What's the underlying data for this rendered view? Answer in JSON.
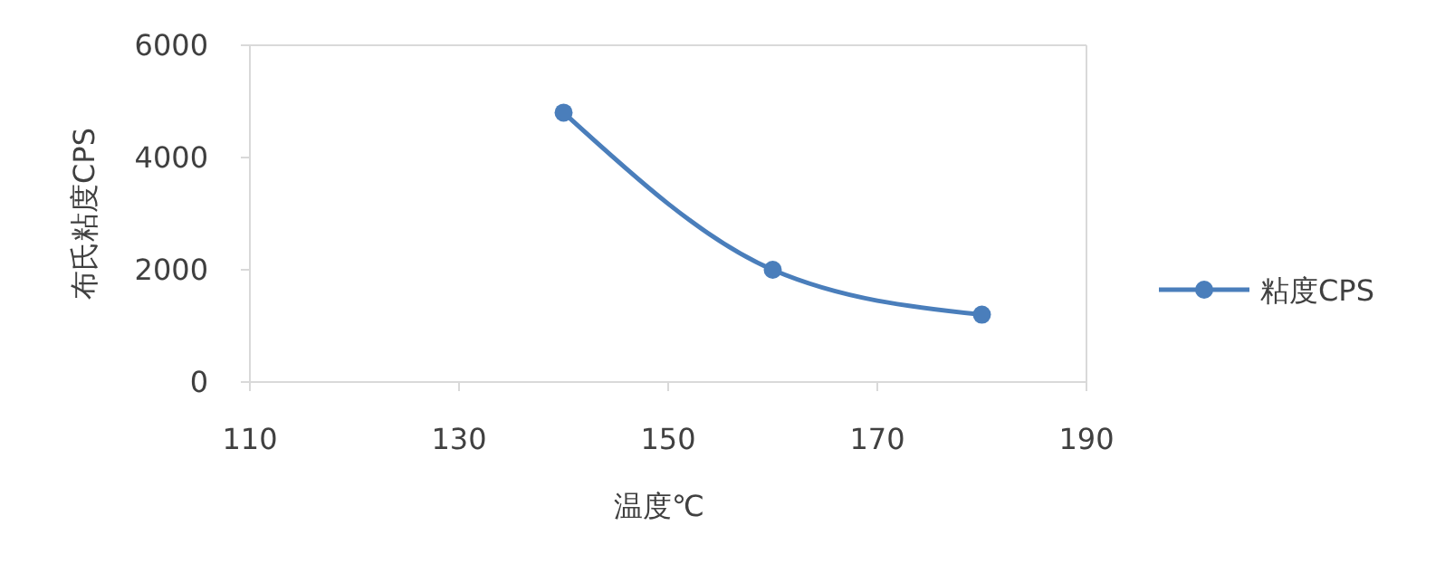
{
  "chart_data": {
    "type": "line",
    "xlabel": "温度℃",
    "ylabel": "布氏粘度CPS",
    "x": [
      140,
      160,
      180
    ],
    "series": [
      {
        "name": "粘度CPS",
        "color": "#4a7ebb",
        "values": [
          4800,
          2000,
          1200
        ]
      }
    ],
    "xlim": [
      110,
      190
    ],
    "xticks": [
      110,
      130,
      150,
      170,
      190
    ],
    "ylim": [
      0,
      6000
    ],
    "yticks": [
      0,
      2000,
      4000,
      6000
    ],
    "grid": false,
    "legend": "right",
    "marker": "circle",
    "line_style": "solid"
  }
}
